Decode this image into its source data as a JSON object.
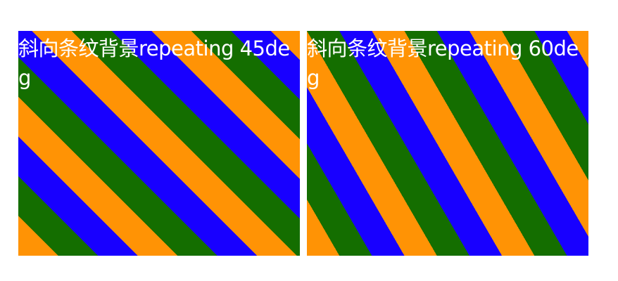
{
  "panels": [
    {
      "label": "斜向条纹背景repeating 45deg",
      "angle_deg": 45,
      "stripe_colors": [
        "#ff9305",
        "#146e00",
        "#1800ff"
      ]
    },
    {
      "label": "斜向条纹背景repeating 60deg",
      "angle_deg": 60,
      "stripe_colors": [
        "#ff9305",
        "#146e00",
        "#1800ff"
      ]
    }
  ]
}
